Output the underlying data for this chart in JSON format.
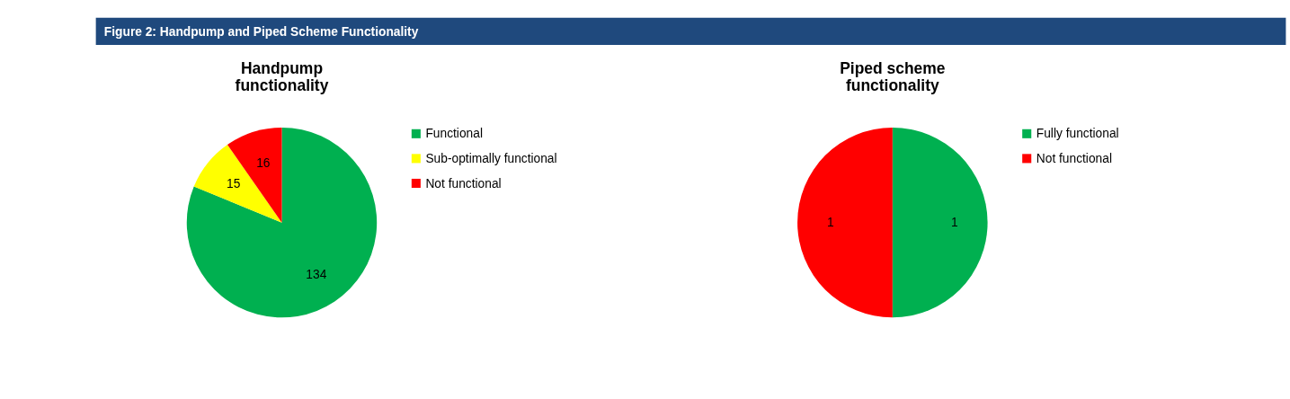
{
  "chart_data": [
    {
      "type": "pie",
      "title": "Handpump functionality",
      "annotations": [
        "Figure 2: Handpump and Piped Scheme Functionality"
      ],
      "categories": [
        "Functional",
        "Sub-optimally functional",
        "Not functional"
      ],
      "values": [
        134,
        15,
        16
      ],
      "colors": [
        "#00b050",
        "#ffff00",
        "#ff0000"
      ],
      "data_labels": true,
      "legend": "right"
    },
    {
      "type": "pie",
      "title": "Piped scheme functionality",
      "categories": [
        "Fully functional",
        "Not functional"
      ],
      "values": [
        1,
        1
      ],
      "colors": [
        "#00b050",
        "#ff0000"
      ],
      "data_labels": true,
      "legend": "right"
    }
  ]
}
